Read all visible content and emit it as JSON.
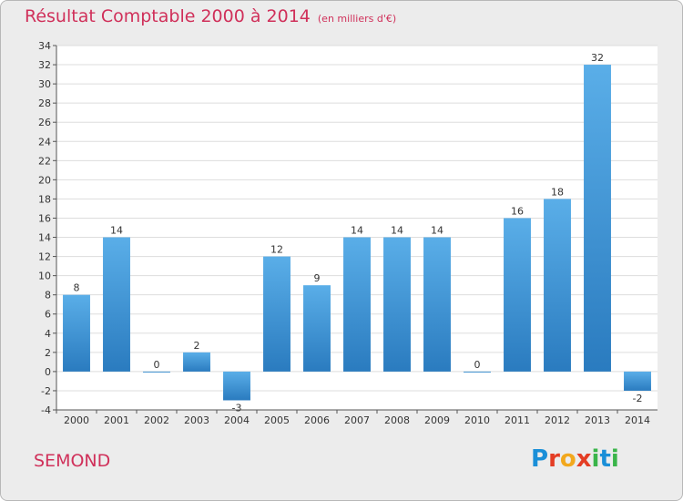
{
  "title": "Résultat Comptable 2000 à 2014",
  "subtitle": "(en milliers d'€)",
  "commune": "SEMOND",
  "logo": {
    "letters": [
      "P",
      "r",
      "o",
      "x",
      "i",
      "t",
      "i"
    ],
    "colors": [
      "#1a8fd8",
      "#e43d24",
      "#f2a81d",
      "#e43d24",
      "#3ab54a",
      "#1a8fd8",
      "#3ab54a"
    ]
  },
  "chart_data": {
    "type": "bar",
    "title": "Résultat Comptable 2000 à 2014",
    "subtitle": "(en milliers d'€)",
    "categories": [
      "2000",
      "2001",
      "2002",
      "2003",
      "2004",
      "2005",
      "2006",
      "2007",
      "2008",
      "2009",
      "2010",
      "2011",
      "2012",
      "2013",
      "2014"
    ],
    "values": [
      8,
      14,
      0,
      2,
      -3,
      12,
      9,
      14,
      14,
      14,
      0,
      16,
      18,
      32,
      -2
    ],
    "ylim": [
      -4,
      34
    ],
    "yticks": [
      -4,
      -2,
      0,
      2,
      4,
      6,
      8,
      10,
      12,
      14,
      16,
      18,
      20,
      22,
      24,
      26,
      28,
      30,
      32,
      34
    ],
    "grid": true,
    "bar_color": "#3d94d6"
  }
}
